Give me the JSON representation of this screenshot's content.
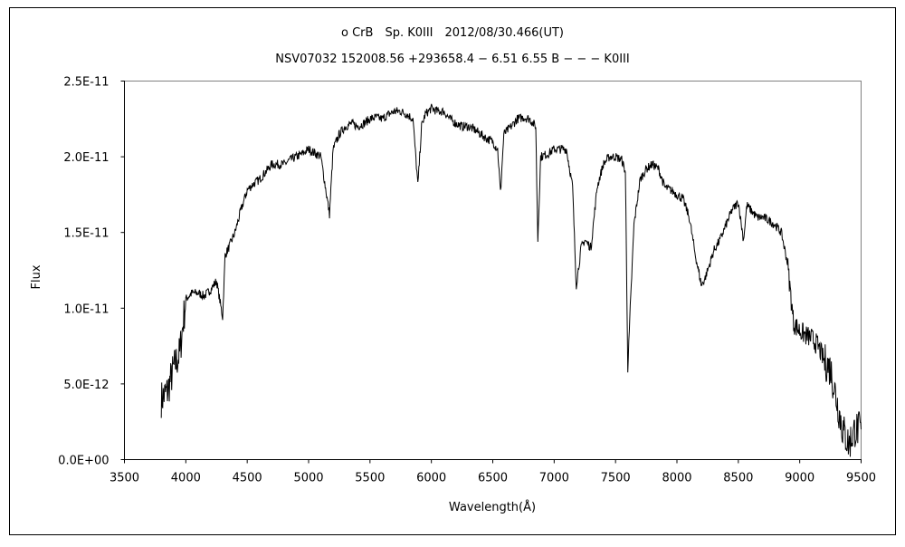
{
  "chart_data": {
    "type": "line",
    "title": "ο CrB　Sp. K0III　2012/08/30.466(UT)",
    "subtitle": "NSV07032 152008.56 +293658.4 − 6.51 6.55 B − − − K0III",
    "xlabel": "Wavelength(Å)",
    "ylabel": "Flux",
    "xlim": [
      3500,
      9500
    ],
    "ylim": [
      0,
      2.5e-11
    ],
    "xticks": [
      "3500",
      "4000",
      "4500",
      "5000",
      "5500",
      "6000",
      "6500",
      "7000",
      "7500",
      "8000",
      "8500",
      "9000",
      "9500"
    ],
    "yticks": [
      "0.0E+00",
      "5.0E-12",
      "1.0E-11",
      "1.5E-11",
      "2.0E-11",
      "2.5E-11"
    ],
    "grid": false,
    "line_color": "#000000",
    "series": [
      {
        "x": [
          3800,
          3850,
          3900,
          3950,
          4000,
          4050,
          4100,
          4150,
          4200,
          4250,
          4300,
          4320,
          4350,
          4400,
          4450,
          4500,
          4550,
          4600,
          4650,
          4700,
          4750,
          4800,
          4850,
          4900,
          4950,
          5000,
          5100,
          5170,
          5200,
          5250,
          5300,
          5350,
          5400,
          5450,
          5500,
          5550,
          5600,
          5650,
          5700,
          5750,
          5800,
          5850,
          5890,
          5920,
          5950,
          6000,
          6050,
          6100,
          6150,
          6200,
          6250,
          6300,
          6350,
          6400,
          6450,
          6500,
          6540,
          6563,
          6590,
          6650,
          6700,
          6750,
          6800,
          6850,
          6867,
          6890,
          6950,
          7000,
          7050,
          7100,
          7150,
          7180,
          7220,
          7250,
          7300,
          7350,
          7400,
          7450,
          7500,
          7550,
          7580,
          7600,
          7620,
          7650,
          7700,
          7750,
          7800,
          7850,
          7900,
          7950,
          8000,
          8050,
          8100,
          8150,
          8200,
          8230,
          8270,
          8300,
          8350,
          8400,
          8450,
          8500,
          8542,
          8570,
          8600,
          8650,
          8700,
          8750,
          8800,
          8850,
          8900,
          8950,
          9000,
          9050,
          9100,
          9150,
          9200,
          9250,
          9300,
          9350,
          9400,
          9450,
          9500
        ],
        "y": [
          4e-12,
          4.5e-12,
          6e-12,
          7e-12,
          1.06e-11,
          1.1e-11,
          1.1e-11,
          1.08e-11,
          1.12e-11,
          1.18e-11,
          9.4e-12,
          1.35e-11,
          1.4e-11,
          1.5e-11,
          1.65e-11,
          1.78e-11,
          1.82e-11,
          1.85e-11,
          1.9e-11,
          1.95e-11,
          1.95e-11,
          1.95e-11,
          1.98e-11,
          2e-11,
          2.02e-11,
          2.05e-11,
          2e-11,
          1.62e-11,
          2.05e-11,
          2.15e-11,
          2.2e-11,
          2.22e-11,
          2.2e-11,
          2.22e-11,
          2.25e-11,
          2.26e-11,
          2.25e-11,
          2.28e-11,
          2.3e-11,
          2.3e-11,
          2.28e-11,
          2.25e-11,
          1.81e-11,
          2.2e-11,
          2.28e-11,
          2.32e-11,
          2.3e-11,
          2.3e-11,
          2.25e-11,
          2.22e-11,
          2.2e-11,
          2.2e-11,
          2.18e-11,
          2.15e-11,
          2.12e-11,
          2.1e-11,
          2.05e-11,
          1.76e-11,
          2.15e-11,
          2.2e-11,
          2.25e-11,
          2.26e-11,
          2.25e-11,
          2.2e-11,
          1.45e-11,
          2e-11,
          2.02e-11,
          2.05e-11,
          2.05e-11,
          2.05e-11,
          1.8e-11,
          1.15e-11,
          1.4e-11,
          1.45e-11,
          1.4e-11,
          1.8e-11,
          1.95e-11,
          2e-11,
          2e-11,
          1.98e-11,
          1.9e-11,
          6e-12,
          1e-11,
          1.55e-11,
          1.85e-11,
          1.92e-11,
          1.95e-11,
          1.92e-11,
          1.8e-11,
          1.78e-11,
          1.75e-11,
          1.72e-11,
          1.6e-11,
          1.35e-11,
          1.15e-11,
          1.2e-11,
          1.3e-11,
          1.38e-11,
          1.45e-11,
          1.55e-11,
          1.65e-11,
          1.7e-11,
          1.45e-11,
          1.68e-11,
          1.65e-11,
          1.6e-11,
          1.6e-11,
          1.58e-11,
          1.55e-11,
          1.5e-11,
          1.3e-11,
          9e-12,
          8.5e-12,
          8.2e-12,
          8e-12,
          7.5e-12,
          6.5e-12,
          6e-12,
          4e-12,
          2e-12,
          1e-12,
          2e-12,
          2e-12
        ]
      }
    ]
  }
}
